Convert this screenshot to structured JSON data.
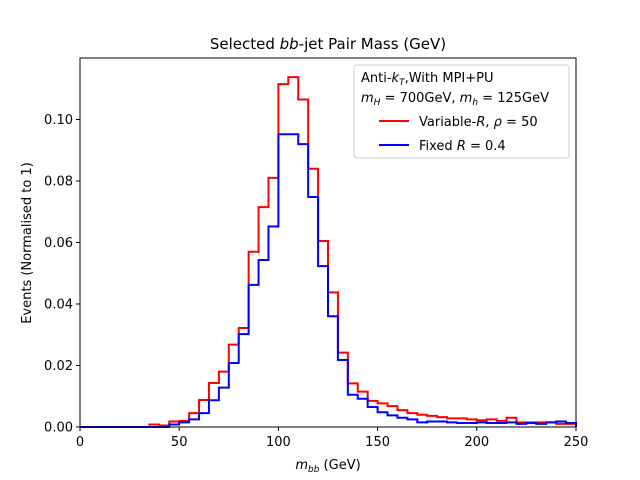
{
  "chart_data": {
    "type": "line",
    "title": "Selected bb-jet Pair Mass (GeV)",
    "xlabel": "m_bb (GeV)",
    "ylabel": "Events (Normalised to 1)",
    "xlim": [
      0,
      250
    ],
    "ylim": [
      0,
      0.12
    ],
    "grid": false,
    "legend_position": "top-right",
    "x_ticks": [
      0,
      50,
      100,
      150,
      200,
      250
    ],
    "x_tick_labels": [
      "0",
      "50",
      "100",
      "150",
      "200",
      "250"
    ],
    "y_ticks": [
      0,
      0.02,
      0.04,
      0.06,
      0.08,
      0.1
    ],
    "y_tick_labels": [
      "0.00",
      "0.02",
      "0.04",
      "0.06",
      "0.08",
      "0.10"
    ],
    "legend_header": [
      "Anti-k_T,With MPI+PU",
      "m_H = 700GeV, m_h = 125GeV"
    ],
    "bin_edges": [
      0,
      5,
      10,
      15,
      20,
      25,
      30,
      35,
      40,
      45,
      50,
      55,
      60,
      65,
      70,
      75,
      80,
      85,
      90,
      95,
      100,
      105,
      110,
      115,
      120,
      125,
      130,
      135,
      140,
      145,
      150,
      155,
      160,
      165,
      170,
      175,
      180,
      185,
      190,
      195,
      200,
      205,
      210,
      215,
      220,
      225,
      230,
      235,
      240,
      245,
      250
    ],
    "series": [
      {
        "name": "Variable-R, ρ = 50",
        "color": "#ff0000",
        "values": [
          0,
          0,
          0,
          0,
          0,
          0,
          0,
          0.0008,
          0.0005,
          0.0018,
          0.002,
          0.0045,
          0.0088,
          0.0143,
          0.018,
          0.0268,
          0.0322,
          0.057,
          0.0715,
          0.081,
          0.1115,
          0.1138,
          0.1065,
          0.084,
          0.0605,
          0.0438,
          0.0242,
          0.0142,
          0.0115,
          0.0085,
          0.0077,
          0.0068,
          0.0055,
          0.0045,
          0.004,
          0.0036,
          0.0032,
          0.0028,
          0.0028,
          0.0025,
          0.0022,
          0.0025,
          0.002,
          0.003,
          0.0015,
          0.0015,
          0.0015,
          0.0015,
          0.001,
          0.001
        ]
      },
      {
        "name": "Fixed R = 0.4",
        "color": "#0000ff",
        "values": [
          0,
          0,
          0,
          0,
          0,
          0,
          0,
          0,
          0,
          0.0008,
          0.0015,
          0.0025,
          0.0045,
          0.0087,
          0.0128,
          0.0208,
          0.0302,
          0.0462,
          0.0543,
          0.0652,
          0.0952,
          0.0952,
          0.092,
          0.0748,
          0.0523,
          0.036,
          0.0218,
          0.0105,
          0.0092,
          0.0065,
          0.0048,
          0.0038,
          0.003,
          0.0025,
          0.0015,
          0.0018,
          0.0018,
          0.0015,
          0.0013,
          0.0013,
          0.0015,
          0.0013,
          0.0013,
          0.0015,
          0.001,
          0.0013,
          0.001,
          0.0015,
          0.0018,
          0.0013
        ]
      }
    ]
  }
}
